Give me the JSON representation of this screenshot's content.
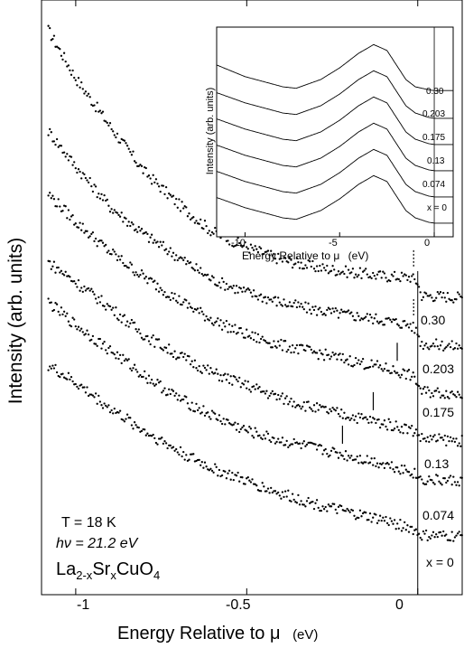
{
  "chart_data": [
    {
      "type": "scatter",
      "title": "",
      "xlabel": "Energy Relative to μ",
      "xlabel_unit": "(eV)",
      "ylabel": "Intensity (arb. units)",
      "xlim": [
        -1.1,
        0.13
      ],
      "xticks": [
        -1,
        -0.5,
        0
      ],
      "xtick_labels": [
        "-1",
        "-0.5",
        "0"
      ],
      "grid": false,
      "vertical_line_at": 0,
      "annotations": {
        "temperature": "T = 18 K",
        "photon_energy": "hν = 21.2 eV",
        "compound_base": "La",
        "compound_sub1": "2-x",
        "compound_mid": "Sr",
        "compound_sub2": "x",
        "compound_end": "CuO",
        "compound_sub3": "4"
      },
      "series": [
        {
          "name": "0.30",
          "label": "0.30",
          "x": [
            -1.08,
            -1.0,
            -0.9,
            -0.8,
            -0.7,
            -0.6,
            -0.5,
            -0.4,
            -0.3,
            -0.2,
            -0.1,
            -0.02,
            0.0,
            0.01,
            0.13
          ],
          "y": [
            10.0,
            9.05,
            8.1,
            7.2,
            6.55,
            6.0,
            5.7,
            5.45,
            5.3,
            5.2,
            5.12,
            5.1,
            5.0,
            4.74,
            4.7
          ]
        },
        {
          "name": "0.203",
          "label": "0.203",
          "x": [
            -1.08,
            -1.0,
            -0.9,
            -0.8,
            -0.7,
            -0.6,
            -0.5,
            -0.4,
            -0.3,
            -0.2,
            -0.1,
            -0.02,
            0.0,
            0.01,
            0.13
          ],
          "y": [
            8.0,
            7.3,
            6.5,
            5.95,
            5.5,
            5.05,
            4.8,
            4.6,
            4.45,
            4.35,
            4.25,
            4.15,
            4.0,
            3.78,
            3.72
          ]
        },
        {
          "name": "0.175",
          "label": "0.175",
          "x": [
            -1.08,
            -1.0,
            -0.9,
            -0.8,
            -0.7,
            -0.6,
            -0.5,
            -0.4,
            -0.3,
            -0.2,
            -0.1,
            -0.02,
            0.0,
            0.01,
            0.13
          ],
          "y": [
            6.75,
            6.2,
            5.6,
            5.1,
            4.65,
            4.25,
            3.95,
            3.75,
            3.6,
            3.45,
            3.3,
            3.15,
            3.0,
            2.83,
            2.78
          ]
        },
        {
          "name": "0.13",
          "label": "0.13",
          "x": [
            -1.08,
            -1.0,
            -0.9,
            -0.8,
            -0.7,
            -0.6,
            -0.5,
            -0.4,
            -0.3,
            -0.2,
            -0.1,
            -0.02,
            0.0,
            0.01,
            0.13
          ],
          "y": [
            5.4,
            5.0,
            4.5,
            3.95,
            3.55,
            3.2,
            2.95,
            2.7,
            2.5,
            2.35,
            2.2,
            2.08,
            2.0,
            1.9,
            1.85
          ]
        },
        {
          "name": "0.074",
          "label": "0.074",
          "x": [
            -1.08,
            -1.0,
            -0.9,
            -0.8,
            -0.7,
            -0.6,
            -0.5,
            -0.4,
            -0.3,
            -0.2,
            -0.1,
            -0.02,
            0.0,
            0.01,
            0.13
          ],
          "y": [
            4.6,
            4.15,
            3.65,
            3.15,
            2.7,
            2.35,
            2.05,
            1.85,
            1.7,
            1.55,
            1.4,
            1.25,
            1.15,
            1.08,
            1.05
          ]
        },
        {
          "name": "x = 0",
          "label": "x = 0",
          "x": [
            -1.08,
            -1.0,
            -0.9,
            -0.8,
            -0.7,
            -0.6,
            -0.5,
            -0.4,
            -0.3,
            -0.2,
            -0.1,
            -0.02,
            0.0,
            0.01,
            0.13
          ],
          "y": [
            3.35,
            3.0,
            2.5,
            2.05,
            1.65,
            1.3,
            1.05,
            0.8,
            0.6,
            0.42,
            0.28,
            0.12,
            0.02,
            -0.03,
            -0.05
          ]
        }
      ],
      "markers": [
        {
          "series": "0.30",
          "x": -0.012,
          "style": "dotted"
        },
        {
          "series": "0.203",
          "x": -0.012,
          "style": "dotted"
        },
        {
          "series": "0.175",
          "x": -0.06,
          "style": "solid"
        },
        {
          "series": "0.13",
          "x": -0.13,
          "style": "solid"
        },
        {
          "series": "0.074",
          "x": -0.22,
          "style": "solid"
        }
      ]
    },
    {
      "type": "line",
      "title": "",
      "xlabel": "Energy Relative to μ",
      "xlabel_unit": "(eV)",
      "ylabel": "Intensity (arb. units)",
      "xlim": [
        -11.5,
        1.0
      ],
      "xticks": [
        -10,
        -5,
        0
      ],
      "xtick_labels": [
        "-10",
        "-5",
        "0"
      ],
      "vertical_line_at": 0,
      "series": [
        {
          "name": "0.30",
          "label": "0.30",
          "x": [
            -11.5,
            -10,
            -8,
            -7.3,
            -6,
            -5,
            -4,
            -3.2,
            -2.5,
            -2,
            -1.5,
            -1,
            -0.3,
            0,
            1.0
          ],
          "y": [
            4.9,
            4.5,
            4.15,
            4.1,
            4.4,
            4.8,
            5.3,
            5.6,
            5.4,
            4.9,
            4.4,
            4.15,
            4.05,
            4.02,
            4.02
          ]
        },
        {
          "name": "0.203",
          "label": "0.203",
          "x": [
            -11.5,
            -10,
            -8,
            -7.3,
            -6,
            -5,
            -4,
            -3.2,
            -2.5,
            -2,
            -1.5,
            -1,
            -0.3,
            0,
            1.0
          ],
          "y": [
            3.95,
            3.6,
            3.25,
            3.2,
            3.5,
            3.9,
            4.4,
            4.7,
            4.5,
            4.0,
            3.5,
            3.25,
            3.1,
            3.07,
            3.07
          ]
        },
        {
          "name": "0.175",
          "label": "0.175",
          "x": [
            -11.5,
            -10,
            -8,
            -7.3,
            -6,
            -5,
            -4,
            -3.2,
            -2.5,
            -2,
            -1.5,
            -1,
            -0.3,
            0,
            1.0
          ],
          "y": [
            3.05,
            2.7,
            2.35,
            2.3,
            2.6,
            3.0,
            3.5,
            3.8,
            3.6,
            3.1,
            2.6,
            2.35,
            2.2,
            2.17,
            2.17
          ]
        },
        {
          "name": "0.13",
          "label": "0.13",
          "x": [
            -11.5,
            -10,
            -8,
            -7.3,
            -6,
            -5,
            -4,
            -3.2,
            -2.5,
            -2,
            -1.5,
            -1,
            -0.3,
            0,
            1.0
          ],
          "y": [
            2.15,
            1.8,
            1.45,
            1.4,
            1.7,
            2.1,
            2.6,
            2.9,
            2.7,
            2.2,
            1.7,
            1.45,
            1.3,
            1.27,
            1.27
          ]
        },
        {
          "name": "0.074",
          "label": "0.074",
          "x": [
            -11.5,
            -10,
            -8,
            -7.3,
            -6,
            -5,
            -4,
            -3.2,
            -2.5,
            -2,
            -1.5,
            -1,
            -0.3,
            0,
            1.0
          ],
          "y": [
            1.25,
            0.9,
            0.55,
            0.5,
            0.8,
            1.2,
            1.7,
            2.0,
            1.8,
            1.3,
            0.8,
            0.55,
            0.4,
            0.37,
            0.37
          ]
        },
        {
          "name": "x = 0",
          "label": "x = 0",
          "x": [
            -11.5,
            -10,
            -8,
            -7.3,
            -6,
            -5,
            -4,
            -3.2,
            -2.5,
            -2,
            -1.5,
            -1,
            -0.3,
            0,
            1.0
          ],
          "y": [
            0.35,
            0.0,
            -0.35,
            -0.4,
            -0.1,
            0.3,
            0.8,
            1.1,
            0.9,
            0.4,
            -0.1,
            -0.35,
            -0.5,
            -0.53,
            -0.53
          ]
        }
      ]
    }
  ],
  "colors": {
    "ink": "#000000",
    "background": "#ffffff"
  }
}
